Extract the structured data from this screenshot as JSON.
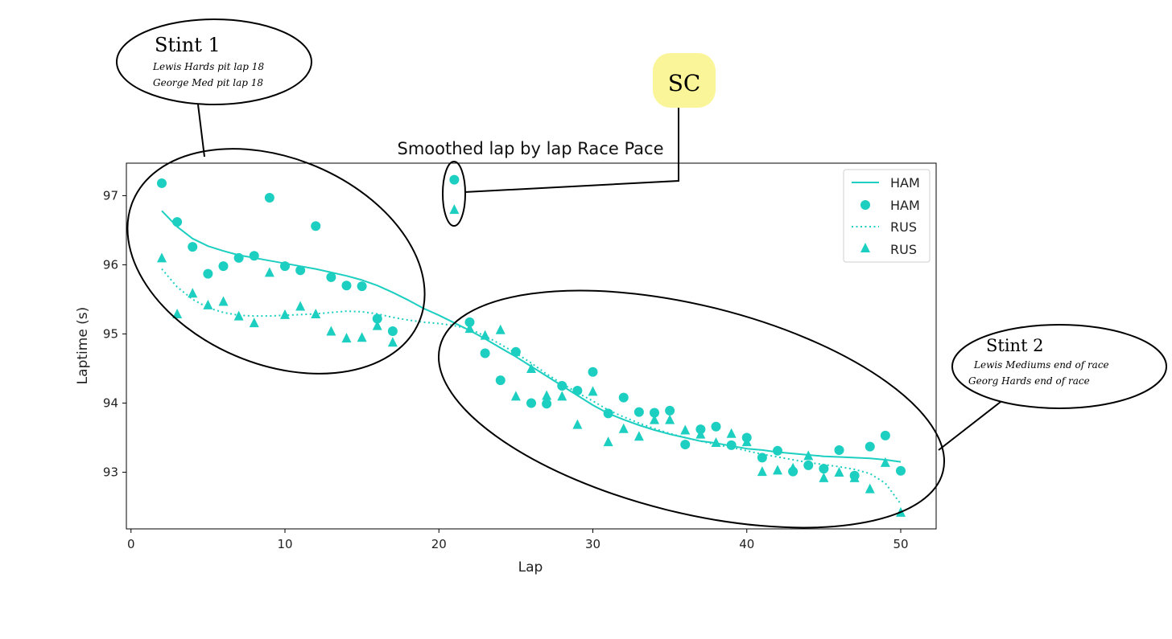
{
  "chart_data": {
    "type": "scatter",
    "title": "Smoothed lap by lap Race Pace",
    "xlabel": "Lap",
    "ylabel": "Laptime (s)",
    "xlim": [
      -0.3,
      52.3
    ],
    "ylim": [
      92.18,
      97.47
    ],
    "xticks": [
      0,
      10,
      20,
      30,
      40,
      50
    ],
    "yticks": [
      93,
      94,
      95,
      96,
      97
    ],
    "grid": false,
    "legend_position": "top-right",
    "color": "#1dcfc0",
    "series": [
      {
        "name": "HAM",
        "kind": "line",
        "style": "solid",
        "x": [
          2,
          3,
          4,
          5,
          6,
          7,
          8,
          9,
          10,
          11,
          12,
          13,
          14,
          15,
          16,
          17,
          18,
          19,
          20,
          21,
          22,
          23,
          24,
          25,
          26,
          27,
          28,
          29,
          30,
          31,
          32,
          33,
          34,
          35,
          36,
          37,
          38,
          39,
          40,
          41,
          42,
          43,
          44,
          45,
          46,
          47,
          48,
          49,
          50
        ],
        "y": [
          96.78,
          96.55,
          96.38,
          96.27,
          96.2,
          96.14,
          96.1,
          96.06,
          96.02,
          95.98,
          95.94,
          95.89,
          95.84,
          95.78,
          95.7,
          95.6,
          95.49,
          95.37,
          95.27,
          95.16,
          95.05,
          94.93,
          94.8,
          94.67,
          94.53,
          94.39,
          94.25,
          94.11,
          93.97,
          93.85,
          93.76,
          93.68,
          93.61,
          93.55,
          93.5,
          93.45,
          93.42,
          93.38,
          93.34,
          93.32,
          93.29,
          93.27,
          93.25,
          93.23,
          93.22,
          93.21,
          93.2,
          93.18,
          93.15
        ]
      },
      {
        "name": "HAM",
        "kind": "scatter",
        "marker": "circle",
        "x": [
          2,
          3,
          4,
          5,
          6,
          7,
          8,
          9,
          10,
          11,
          12,
          13,
          14,
          15,
          16,
          17,
          21,
          22,
          23,
          24,
          25,
          26,
          27,
          28,
          29,
          30,
          31,
          32,
          33,
          34,
          35,
          36,
          37,
          38,
          39,
          40,
          41,
          42,
          43,
          44,
          45,
          46,
          47,
          48,
          49,
          50
        ],
        "y": [
          97.18,
          96.62,
          96.26,
          95.87,
          95.98,
          96.1,
          96.13,
          96.97,
          95.98,
          95.92,
          96.56,
          95.82,
          95.7,
          95.69,
          95.22,
          95.04,
          97.23,
          95.17,
          94.72,
          94.33,
          94.74,
          94.0,
          93.99,
          94.25,
          94.18,
          94.45,
          93.85,
          94.08,
          93.87,
          93.86,
          93.89,
          93.4,
          93.62,
          93.66,
          93.39,
          93.5,
          93.21,
          93.31,
          93.01,
          93.1,
          93.05,
          93.32,
          92.95,
          93.37,
          93.53,
          93.02
        ]
      },
      {
        "name": "RUS",
        "kind": "line",
        "style": "dotted",
        "x": [
          2,
          3,
          4,
          5,
          6,
          7,
          8,
          9,
          10,
          11,
          12,
          13,
          14,
          15,
          16,
          17,
          18,
          19,
          20,
          21,
          22,
          23,
          24,
          25,
          26,
          27,
          28,
          29,
          30,
          31,
          32,
          33,
          34,
          35,
          36,
          37,
          38,
          39,
          40,
          41,
          42,
          43,
          44,
          45,
          46,
          47,
          48,
          49,
          50
        ],
        "y": [
          95.94,
          95.68,
          95.5,
          95.38,
          95.31,
          95.27,
          95.26,
          95.26,
          95.27,
          95.28,
          95.29,
          95.31,
          95.33,
          95.32,
          95.29,
          95.24,
          95.2,
          95.17,
          95.15,
          95.12,
          95.07,
          94.97,
          94.85,
          94.72,
          94.58,
          94.42,
          94.28,
          94.15,
          94.03,
          93.9,
          93.8,
          93.71,
          93.63,
          93.56,
          93.5,
          93.45,
          93.4,
          93.36,
          93.31,
          93.26,
          93.22,
          93.18,
          93.14,
          93.11,
          93.08,
          93.04,
          92.98,
          92.84,
          92.54
        ]
      },
      {
        "name": "RUS",
        "kind": "scatter",
        "marker": "triangle",
        "x": [
          2,
          3,
          4,
          5,
          6,
          7,
          8,
          9,
          10,
          11,
          12,
          13,
          14,
          15,
          16,
          17,
          21,
          22,
          23,
          24,
          25,
          26,
          27,
          28,
          29,
          30,
          31,
          32,
          33,
          34,
          35,
          36,
          37,
          38,
          39,
          40,
          41,
          42,
          43,
          44,
          45,
          46,
          47,
          48,
          49,
          50
        ],
        "y": [
          96.1,
          95.29,
          95.59,
          95.42,
          95.47,
          95.26,
          95.16,
          95.89,
          95.28,
          95.4,
          95.29,
          95.04,
          94.94,
          94.95,
          95.12,
          94.88,
          96.8,
          95.08,
          94.98,
          95.06,
          94.1,
          94.5,
          94.11,
          94.1,
          93.69,
          94.17,
          93.44,
          93.63,
          93.52,
          93.76,
          93.76,
          93.61,
          93.55,
          93.43,
          93.56,
          93.44,
          93.01,
          93.03,
          93.06,
          93.24,
          92.92,
          93.0,
          92.92,
          92.76,
          93.14,
          92.42
        ]
      }
    ],
    "annotations": {
      "stint1": {
        "title": "Stint 1",
        "line1": "Lewis Hards pit lap 18",
        "line2": "George Med pit lap 18"
      },
      "sc": {
        "label": "SC"
      },
      "stint2": {
        "title": "Stint 2",
        "line1": "Lewis Mediums end of race",
        "line2": "Georg Hards end of race"
      }
    }
  }
}
